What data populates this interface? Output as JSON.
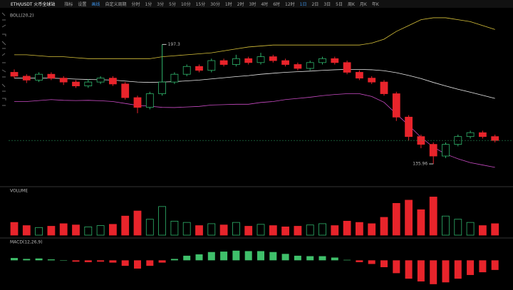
{
  "toolbar": {
    "symbol": "ETH/USDT 火币全球站",
    "tools": [
      "指标",
      "设置",
      "画线"
    ],
    "custom_period": "自定义周期",
    "periods": [
      "分时",
      "1分",
      "3分",
      "5分",
      "10分",
      "15分",
      "30分",
      "1时",
      "2时",
      "3时",
      "4时",
      "6时",
      "12时",
      "1日",
      "2日",
      "3日",
      "5日",
      "周K",
      "月K",
      "年K"
    ]
  },
  "chart_data": {
    "type": "candlestick",
    "indicator_label": "BOLL(20,2)",
    "ylim": [
      125,
      215
    ],
    "candles": [
      [
        183,
        184.5,
        180,
        181
      ],
      [
        181,
        182,
        177.5,
        179
      ],
      [
        179,
        183,
        178,
        182
      ],
      [
        182,
        183,
        179,
        180
      ],
      [
        180,
        181,
        176.5,
        178
      ],
      [
        178,
        179,
        175,
        176
      ],
      [
        176,
        179.5,
        175,
        178
      ],
      [
        178,
        181,
        177,
        180
      ],
      [
        180,
        181,
        176,
        177
      ],
      [
        177,
        178,
        169,
        170
      ],
      [
        170,
        171,
        162,
        165
      ],
      [
        165,
        173,
        164,
        172
      ],
      [
        172,
        197.3,
        171,
        178
      ],
      [
        178,
        183,
        177,
        182
      ],
      [
        182,
        187,
        181,
        186
      ],
      [
        186,
        187,
        183,
        184
      ],
      [
        184,
        190,
        183,
        189
      ],
      [
        189,
        190,
        186,
        187
      ],
      [
        187,
        192,
        186,
        190
      ],
      [
        190,
        191,
        187,
        188
      ],
      [
        188,
        193,
        187,
        191
      ],
      [
        191,
        192,
        188,
        189
      ],
      [
        189,
        190,
        186,
        187
      ],
      [
        187,
        188,
        184,
        185
      ],
      [
        185,
        189,
        184,
        188
      ],
      [
        188,
        191,
        187,
        190
      ],
      [
        190,
        191,
        187,
        188
      ],
      [
        188,
        189,
        182,
        183
      ],
      [
        183,
        184,
        179,
        180
      ],
      [
        180,
        181,
        177,
        178
      ],
      [
        178,
        179,
        171,
        172
      ],
      [
        172,
        173,
        158,
        160
      ],
      [
        160,
        161,
        148,
        150
      ],
      [
        150,
        151,
        144,
        146
      ],
      [
        146,
        147,
        135.96,
        140
      ],
      [
        140,
        147,
        139,
        146
      ],
      [
        146,
        151,
        145,
        150
      ],
      [
        150,
        153,
        149,
        152
      ],
      [
        152,
        153,
        149,
        150
      ],
      [
        150,
        151,
        147,
        148
      ]
    ],
    "up_color": "#2fb36b",
    "down_color": "#e8242b",
    "series": [
      {
        "color": "#d8c23a",
        "values": [
          192,
          192,
          191.5,
          191,
          191,
          190.5,
          190,
          190,
          190,
          190,
          190,
          190,
          191,
          191.5,
          192,
          192.5,
          193,
          194,
          195,
          196,
          196.5,
          197,
          197,
          197,
          197,
          197,
          197,
          197,
          197,
          198,
          200,
          204,
          207,
          210,
          211,
          211,
          210,
          209,
          207,
          205
        ]
      },
      {
        "color": "#e8e8e8",
        "values": [
          180,
          180,
          180,
          180,
          179.8,
          179.5,
          179.3,
          179.2,
          179,
          178.5,
          178,
          177.8,
          178,
          178.2,
          178.6,
          179,
          179.6,
          180.2,
          180.8,
          181.3,
          182,
          182.5,
          183,
          183.3,
          183.6,
          184,
          184.3,
          184.5,
          184.5,
          184.3,
          183.8,
          182.8,
          181.4,
          179.8,
          177.8,
          176,
          174.3,
          172.8,
          171.2,
          169.6
        ]
      },
      {
        "color": "#c94bc4",
        "values": [
          168,
          168,
          168.5,
          169,
          168.6,
          168.5,
          168.6,
          168.4,
          168,
          167,
          166,
          165.6,
          165,
          164.9,
          165.2,
          165.5,
          166.2,
          166.4,
          166.6,
          166.6,
          167.5,
          168,
          169,
          169.6,
          170.2,
          171,
          171.6,
          172,
          172,
          170.6,
          167.6,
          161.6,
          155.8,
          149.6,
          144.6,
          141,
          138.6,
          136.6,
          135.4,
          134.2
        ]
      }
    ],
    "volume": {
      "label": "VOLUME",
      "ylim": [
        0,
        65
      ],
      "values": [
        20,
        15,
        12,
        14,
        18,
        16,
        13,
        15,
        17,
        30,
        38,
        25,
        45,
        22,
        20,
        15,
        18,
        16,
        20,
        14,
        17,
        15,
        13,
        14,
        16,
        18,
        15,
        22,
        20,
        18,
        28,
        50,
        55,
        40,
        60,
        30,
        25,
        20,
        15,
        18
      ]
    },
    "macd": {
      "label": "MACD(12,26,9)",
      "ylim": [
        -6,
        3
      ],
      "values": [
        0.5,
        0.3,
        0.4,
        0.2,
        0,
        -0.3,
        -0.4,
        -0.3,
        -0.5,
        -1.2,
        -1.8,
        -1.2,
        -0.5,
        0.3,
        1.0,
        1.3,
        1.8,
        1.9,
        2.1,
        2.0,
        2.0,
        1.8,
        1.4,
        1.0,
        0.9,
        0.9,
        0.6,
        0.1,
        -0.4,
        -0.8,
        -1.5,
        -2.8,
        -4.0,
        -4.6,
        -5.2,
        -4.8,
        -4.0,
        -3.2,
        -2.6,
        -2.1
      ]
    }
  }
}
